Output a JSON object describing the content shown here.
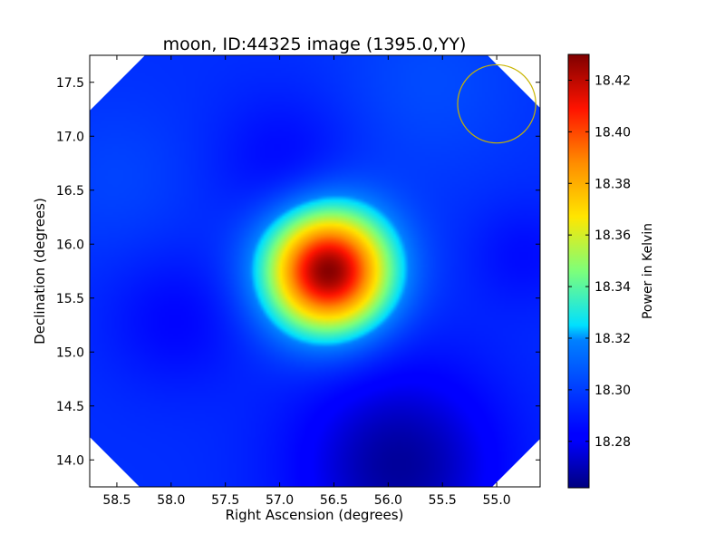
{
  "chart_data": {
    "type": "heatmap",
    "title": "moon, ID:44325 image (1395.0,YY)",
    "xlabel": "Right Ascension (degrees)",
    "ylabel": "Declination (degrees)",
    "xlim": [
      58.75,
      54.6
    ],
    "ylim": [
      13.75,
      17.75
    ],
    "x_ticks": [
      {
        "value": 58.5,
        "label": "58.5"
      },
      {
        "value": 58.0,
        "label": "58.0"
      },
      {
        "value": 57.5,
        "label": "57.5"
      },
      {
        "value": 57.0,
        "label": "57.0"
      },
      {
        "value": 56.5,
        "label": "56.5"
      },
      {
        "value": 56.0,
        "label": "56.0"
      },
      {
        "value": 55.5,
        "label": "55.5"
      },
      {
        "value": 55.0,
        "label": "55.0"
      }
    ],
    "y_ticks": [
      {
        "value": 14.0,
        "label": "14.0"
      },
      {
        "value": 14.5,
        "label": "14.5"
      },
      {
        "value": 15.0,
        "label": "15.0"
      },
      {
        "value": 15.5,
        "label": "15.5"
      },
      {
        "value": 16.0,
        "label": "16.0"
      },
      {
        "value": 16.5,
        "label": "16.5"
      },
      {
        "value": 17.0,
        "label": "17.0"
      },
      {
        "value": 17.5,
        "label": "17.5"
      }
    ],
    "colorbar": {
      "label": "Power in Kelvin",
      "colormap": "jet",
      "range": [
        18.262,
        18.43
      ],
      "ticks": [
        {
          "value": 18.28,
          "label": "18.28"
        },
        {
          "value": 18.3,
          "label": "18.30"
        },
        {
          "value": 18.32,
          "label": "18.32"
        },
        {
          "value": 18.34,
          "label": "18.34"
        },
        {
          "value": 18.36,
          "label": "18.36"
        },
        {
          "value": 18.38,
          "label": "18.38"
        },
        {
          "value": 18.4,
          "label": "18.40"
        },
        {
          "value": 18.42,
          "label": "18.42"
        }
      ]
    },
    "background_level": 18.296,
    "blobs": [
      {
        "ra": 56.55,
        "dec": 15.75,
        "sigma_deg": 0.4,
        "amplitude": 0.134
      },
      {
        "ra": 56.95,
        "dec": 16.75,
        "sigma_deg": 0.45,
        "amplitude": -0.012
      },
      {
        "ra": 55.9,
        "dec": 13.95,
        "sigma_deg": 0.7,
        "amplitude": -0.03
      },
      {
        "ra": 57.95,
        "dec": 15.3,
        "sigma_deg": 0.45,
        "amplitude": -0.012
      },
      {
        "ra": 54.75,
        "dec": 15.9,
        "sigma_deg": 0.35,
        "amplitude": -0.01
      },
      {
        "ra": 55.6,
        "dec": 17.5,
        "sigma_deg": 0.6,
        "amplitude": 0.008
      },
      {
        "ra": 58.5,
        "dec": 16.6,
        "sigma_deg": 0.5,
        "amplitude": 0.006
      }
    ],
    "grid": false,
    "beam_circle": {
      "ra": 55.0,
      "dec": 17.3,
      "radius_deg": 0.36,
      "color": "#c8b400"
    },
    "corner_color": "#ffffff"
  }
}
